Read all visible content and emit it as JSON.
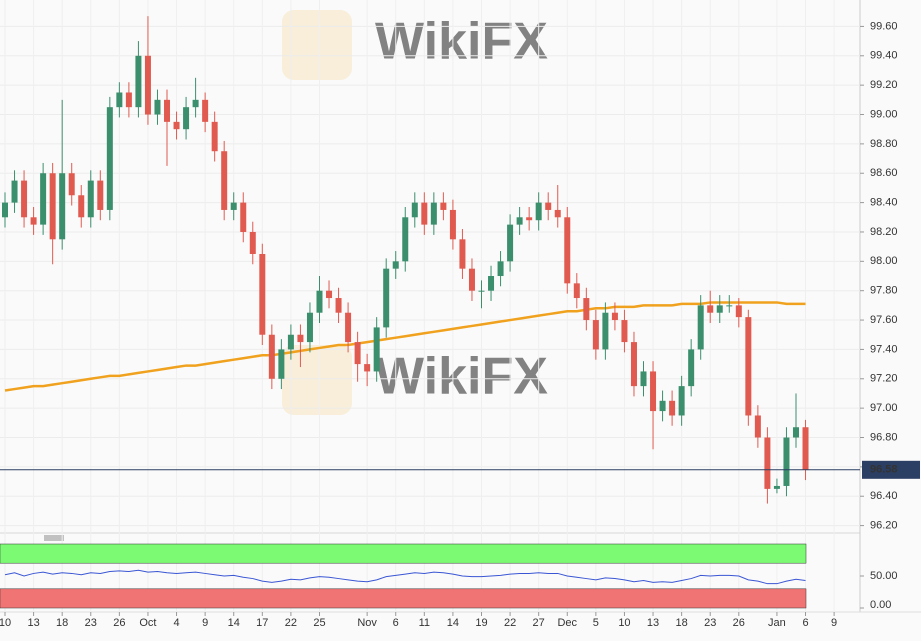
{
  "chart_data": {
    "type": "candlestick",
    "watermark": "WikiFX",
    "categories": [
      "10",
      null,
      null,
      "13",
      null,
      null,
      "18",
      null,
      null,
      "23",
      null,
      null,
      "26",
      null,
      null,
      "Oct",
      null,
      null,
      "4",
      null,
      null,
      "9",
      null,
      null,
      "14",
      null,
      null,
      "17",
      null,
      null,
      "22",
      null,
      null,
      "25",
      null,
      null,
      null,
      null,
      "Nov",
      null,
      null,
      "6",
      null,
      null,
      "11",
      null,
      null,
      "14",
      null,
      null,
      "19",
      null,
      null,
      "22",
      null,
      null,
      "27",
      null,
      null,
      "Dec",
      null,
      null,
      "5",
      null,
      null,
      "10",
      null,
      null,
      "13",
      null,
      null,
      "18",
      null,
      null,
      "23",
      null,
      null,
      "26",
      null,
      null,
      null,
      "Jan",
      null,
      null,
      "6"
    ],
    "future_categories": [
      null,
      null,
      "9"
    ],
    "open": [
      98.3,
      98.4,
      98.55,
      98.3,
      98.25,
      98.6,
      98.15,
      98.6,
      98.45,
      98.3,
      98.55,
      98.35,
      99.05,
      99.15,
      99.05,
      99.4,
      99.0,
      99.1,
      98.95,
      98.9,
      99.05,
      99.1,
      98.95,
      98.75,
      98.35,
      98.4,
      98.2,
      98.05,
      97.5,
      97.2,
      97.4,
      97.5,
      97.45,
      97.65,
      97.8,
      97.75,
      97.65,
      97.45,
      97.3,
      97.25,
      97.55,
      97.95,
      98.0,
      98.3,
      98.4,
      98.25,
      98.4,
      98.35,
      98.15,
      97.95,
      97.8,
      97.8,
      97.9,
      98.0,
      98.25,
      98.3,
      98.28,
      98.4,
      98.35,
      98.3,
      97.85,
      97.75,
      97.6,
      97.4,
      97.65,
      97.6,
      97.45,
      97.15,
      97.25,
      96.98,
      97.05,
      96.95,
      97.15,
      97.4,
      97.7,
      97.65,
      97.7,
      97.7,
      97.62,
      96.95,
      96.8,
      96.45,
      96.47,
      96.8,
      96.87
    ],
    "high": [
      98.47,
      98.62,
      98.62,
      98.37,
      98.67,
      98.67,
      99.1,
      98.67,
      98.52,
      98.62,
      98.62,
      99.12,
      99.22,
      99.22,
      99.5,
      99.67,
      99.17,
      99.17,
      99.02,
      99.12,
      99.25,
      99.15,
      99.02,
      98.82,
      98.47,
      98.47,
      98.27,
      98.12,
      97.57,
      97.47,
      97.57,
      97.57,
      97.72,
      97.9,
      97.87,
      97.82,
      97.72,
      97.52,
      97.37,
      97.62,
      98.02,
      98.07,
      98.37,
      98.47,
      98.47,
      98.47,
      98.47,
      98.42,
      98.22,
      98.02,
      97.87,
      97.97,
      98.07,
      98.32,
      98.37,
      98.37,
      98.47,
      98.47,
      98.52,
      98.37,
      97.92,
      97.82,
      97.67,
      97.72,
      97.72,
      97.67,
      97.52,
      97.32,
      97.32,
      97.12,
      97.12,
      97.22,
      97.47,
      97.77,
      97.8,
      97.77,
      97.77,
      97.75,
      97.67,
      97.02,
      96.87,
      96.52,
      96.87,
      97.1,
      96.92
    ],
    "low": [
      98.23,
      98.33,
      98.23,
      98.18,
      98.18,
      97.98,
      98.08,
      98.38,
      98.23,
      98.23,
      98.28,
      98.28,
      98.98,
      98.98,
      98.98,
      98.93,
      98.93,
      98.65,
      98.83,
      98.83,
      98.98,
      98.88,
      98.68,
      98.28,
      98.28,
      98.13,
      97.98,
      97.43,
      97.13,
      97.13,
      97.33,
      97.28,
      97.38,
      97.58,
      97.68,
      97.58,
      97.38,
      97.18,
      97.15,
      97.18,
      97.48,
      97.88,
      97.93,
      98.23,
      98.18,
      98.18,
      98.28,
      98.08,
      97.88,
      97.73,
      97.68,
      97.73,
      97.83,
      97.93,
      98.18,
      98.21,
      98.21,
      98.28,
      98.23,
      97.78,
      97.68,
      97.53,
      97.33,
      97.33,
      97.53,
      97.38,
      97.08,
      97.08,
      96.72,
      96.91,
      96.88,
      96.88,
      97.08,
      97.33,
      97.58,
      97.58,
      97.65,
      97.55,
      96.88,
      96.73,
      96.35,
      96.42,
      96.4,
      96.73,
      96.51
    ],
    "close": [
      98.4,
      98.55,
      98.3,
      98.25,
      98.6,
      98.15,
      98.6,
      98.45,
      98.3,
      98.55,
      98.35,
      99.05,
      99.15,
      99.05,
      99.4,
      99.0,
      99.1,
      98.95,
      98.9,
      99.05,
      99.1,
      98.95,
      98.75,
      98.35,
      98.4,
      98.2,
      98.05,
      97.5,
      97.2,
      97.4,
      97.5,
      97.45,
      97.65,
      97.8,
      97.75,
      97.65,
      97.45,
      97.3,
      97.25,
      97.55,
      97.95,
      98.0,
      98.3,
      98.4,
      98.25,
      98.4,
      98.35,
      98.15,
      97.95,
      97.8,
      97.8,
      97.9,
      98.0,
      98.25,
      98.3,
      98.28,
      98.4,
      98.35,
      98.3,
      97.85,
      97.75,
      97.6,
      97.4,
      97.65,
      97.6,
      97.45,
      97.15,
      97.25,
      96.98,
      97.05,
      96.95,
      97.15,
      97.4,
      97.7,
      97.65,
      97.7,
      97.7,
      97.62,
      96.95,
      96.8,
      96.45,
      96.47,
      96.8,
      96.87,
      96.58
    ],
    "up_color": "#3b8f6d",
    "down_color": "#e05a50",
    "moving_average": {
      "color": "#f0a21e",
      "values": [
        97.12,
        97.13,
        97.14,
        97.15,
        97.15,
        97.16,
        97.17,
        97.18,
        97.19,
        97.2,
        97.21,
        97.22,
        97.22,
        97.23,
        97.24,
        97.25,
        97.26,
        97.27,
        97.28,
        97.29,
        97.29,
        97.3,
        97.31,
        97.32,
        97.33,
        97.34,
        97.35,
        97.36,
        97.36,
        97.37,
        97.38,
        97.39,
        97.4,
        97.41,
        97.42,
        97.43,
        97.43,
        97.44,
        97.45,
        97.46,
        97.47,
        97.48,
        97.49,
        97.5,
        97.51,
        97.52,
        97.53,
        97.54,
        97.55,
        97.56,
        97.57,
        97.58,
        97.59,
        97.6,
        97.61,
        97.62,
        97.63,
        97.64,
        97.65,
        97.66,
        97.66,
        97.67,
        97.68,
        97.68,
        97.69,
        97.69,
        97.69,
        97.7,
        97.7,
        97.7,
        97.7,
        97.71,
        97.71,
        97.71,
        97.72,
        97.72,
        97.72,
        97.72,
        97.72,
        97.72,
        97.72,
        97.72,
        97.71,
        97.71,
        97.71
      ]
    },
    "last_price": 96.58,
    "ylim": [
      96.17,
      99.78
    ],
    "yticks": [
      {
        "value": 96.2,
        "label": "96.20"
      },
      {
        "value": 96.4,
        "label": "96.40"
      },
      {
        "value": 96.6,
        "label": "96.60"
      },
      {
        "value": 96.8,
        "label": "96.80"
      },
      {
        "value": 97.0,
        "label": "97.00"
      },
      {
        "value": 97.2,
        "label": "97.20"
      },
      {
        "value": 97.4,
        "label": "97.40"
      },
      {
        "value": 97.6,
        "label": "97.60"
      },
      {
        "value": 97.8,
        "label": "97.80"
      },
      {
        "value": 98.0,
        "label": "98.00"
      },
      {
        "value": 98.2,
        "label": "98.20"
      },
      {
        "value": 98.4,
        "label": "98.40"
      },
      {
        "value": 98.6,
        "label": "98.60"
      },
      {
        "value": 98.8,
        "label": "98.80"
      },
      {
        "value": 99.0,
        "label": "99.00"
      },
      {
        "value": 99.2,
        "label": "99.20"
      },
      {
        "value": 99.4,
        "label": "99.40"
      },
      {
        "value": 99.6,
        "label": "99.60"
      }
    ],
    "grid": true,
    "indicator": {
      "color": "#3a56d4",
      "values": [
        52,
        55,
        50,
        54,
        56,
        53,
        55,
        54,
        52,
        55,
        54,
        57,
        58,
        57,
        59,
        56,
        57,
        55,
        54,
        55,
        56,
        54,
        52,
        50,
        51,
        48,
        46,
        42,
        40,
        42,
        45,
        44,
        47,
        49,
        48,
        46,
        44,
        42,
        41,
        44,
        49,
        51,
        53,
        55,
        54,
        56,
        55,
        53,
        50,
        49,
        49,
        50,
        51,
        53,
        54,
        54,
        55,
        54,
        54,
        50,
        48,
        46,
        44,
        47,
        46,
        44,
        41,
        43,
        40,
        41,
        40,
        43,
        46,
        51,
        50,
        51,
        51,
        50,
        44,
        42,
        38,
        38,
        42,
        45,
        43
      ],
      "ylim": [
        0,
        100
      ],
      "yticks": [
        {
          "value": 0,
          "label": "0.00"
        },
        {
          "value": 50,
          "label": "50.00"
        }
      ],
      "upper_band": [
        70,
        100
      ],
      "upper_color": "#7dfa74",
      "lower_band": [
        0,
        30
      ],
      "lower_color": "#f07474"
    }
  }
}
